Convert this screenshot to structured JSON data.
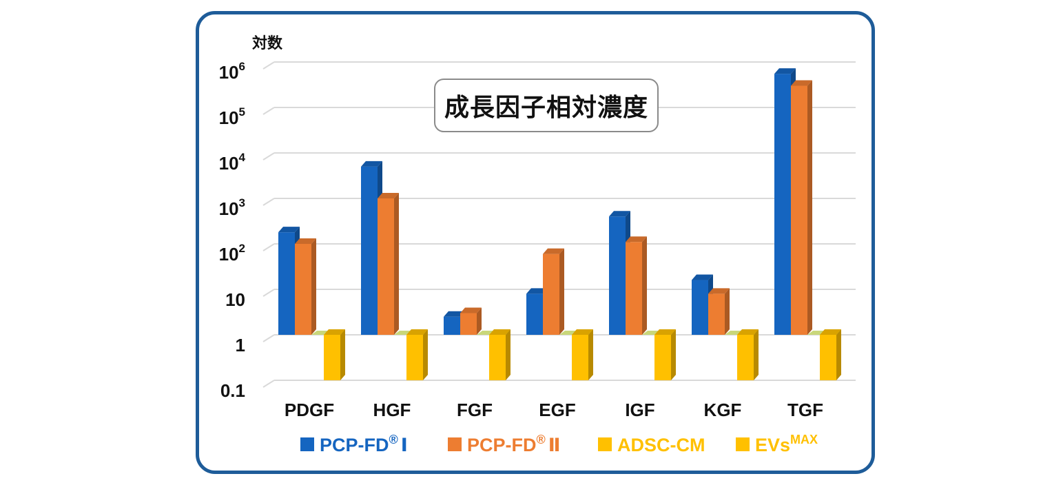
{
  "chart_data": {
    "type": "bar",
    "title": "成長因子相対濃度",
    "ylabel": "対数",
    "y_scale": "log",
    "ylim": [
      0.1,
      1000000
    ],
    "y_ticks": [
      {
        "base": "10",
        "sup": "6"
      },
      {
        "base": "10",
        "sup": "5"
      },
      {
        "base": "10",
        "sup": "4"
      },
      {
        "base": "10",
        "sup": "3"
      },
      {
        "base": "10",
        "sup": "2"
      },
      {
        "base": "10",
        "sup": ""
      },
      {
        "base": "1",
        "sup": ""
      },
      {
        "base": "0.1",
        "sup": ""
      }
    ],
    "grid": true,
    "categories": [
      "PDGF",
      "HGF",
      "FGF",
      "EGF",
      "IGF",
      "KGF",
      "TGF"
    ],
    "series": [
      {
        "name": "PCP-FD",
        "mark": "®",
        "suffix": "Ⅰ",
        "color": "#1565c0",
        "values": [
          180,
          5000,
          2.5,
          8,
          400,
          16,
          550000
        ]
      },
      {
        "name": "PCP-FD",
        "mark": "®",
        "suffix": "Ⅱ",
        "color": "#ed7d31",
        "values": [
          100,
          1000,
          3,
          60,
          110,
          8,
          300000
        ]
      },
      {
        "name": "ADSC-CM",
        "mark": "",
        "suffix": "",
        "color": "#ffc000",
        "values": [
          1,
          1,
          1,
          1,
          1,
          1,
          1
        ]
      },
      {
        "name": "EVs",
        "mark": "MAX",
        "suffix": "",
        "color": "#ffc000",
        "values": [
          0.1,
          0.1,
          0.1,
          0.1,
          0.1,
          0.1,
          0.1
        ]
      }
    ],
    "legend_position": "bottom"
  }
}
